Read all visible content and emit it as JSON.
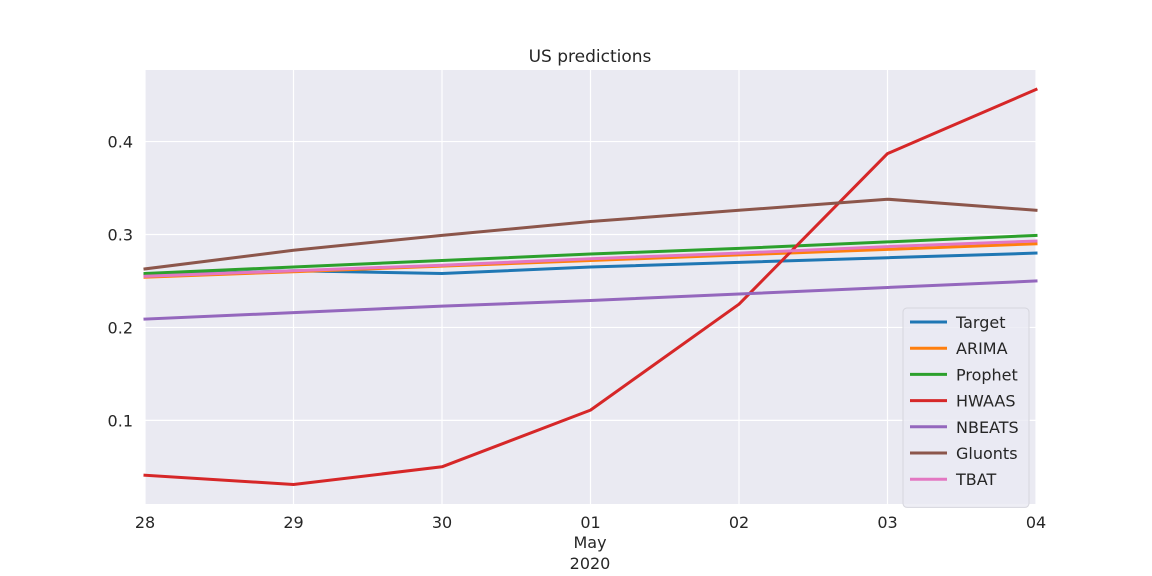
{
  "chart_data": {
    "type": "line",
    "title": "US predictions",
    "xlabel": "",
    "ylabel": "",
    "x": [
      "2020-04-28",
      "2020-04-29",
      "2020-04-30",
      "2020-05-01",
      "2020-05-02",
      "2020-05-03",
      "2020-05-04"
    ],
    "x_tick_labels": [
      "28",
      "29",
      "30",
      "01",
      "02",
      "03",
      "04"
    ],
    "x_secondary_label": {
      "month": "May",
      "year": "2020"
    },
    "yticks": [
      0.1,
      0.2,
      0.3,
      0.4
    ],
    "ytick_labels": [
      "0.1",
      "0.2",
      "0.3",
      "0.4"
    ],
    "ylim": [
      0.01,
      0.477
    ],
    "grid": true,
    "legend_position": "lower-right",
    "series": [
      {
        "name": "Target",
        "color": "#1f77b4",
        "values": [
          0.256,
          0.261,
          0.258,
          0.265,
          0.27,
          0.275,
          0.28
        ]
      },
      {
        "name": "ARIMA",
        "color": "#ff7f0e",
        "values": [
          0.254,
          0.26,
          0.266,
          0.272,
          0.278,
          0.284,
          0.29
        ]
      },
      {
        "name": "Prophet",
        "color": "#2ca02c",
        "values": [
          0.258,
          0.265,
          0.272,
          0.279,
          0.285,
          0.292,
          0.299
        ]
      },
      {
        "name": "HWAAS",
        "color": "#d62728",
        "values": [
          0.041,
          0.031,
          0.05,
          0.111,
          0.225,
          0.387,
          0.456
        ]
      },
      {
        "name": "NBEATS",
        "color": "#9467bd",
        "values": [
          0.209,
          0.216,
          0.223,
          0.229,
          0.236,
          0.243,
          0.25
        ]
      },
      {
        "name": "Gluonts",
        "color": "#8c564b",
        "values": [
          0.263,
          0.283,
          0.299,
          0.314,
          0.326,
          0.338,
          0.326
        ]
      },
      {
        "name": "TBAT",
        "color": "#e377c2",
        "values": [
          0.255,
          0.261,
          0.267,
          0.274,
          0.28,
          0.287,
          0.293
        ]
      }
    ]
  }
}
